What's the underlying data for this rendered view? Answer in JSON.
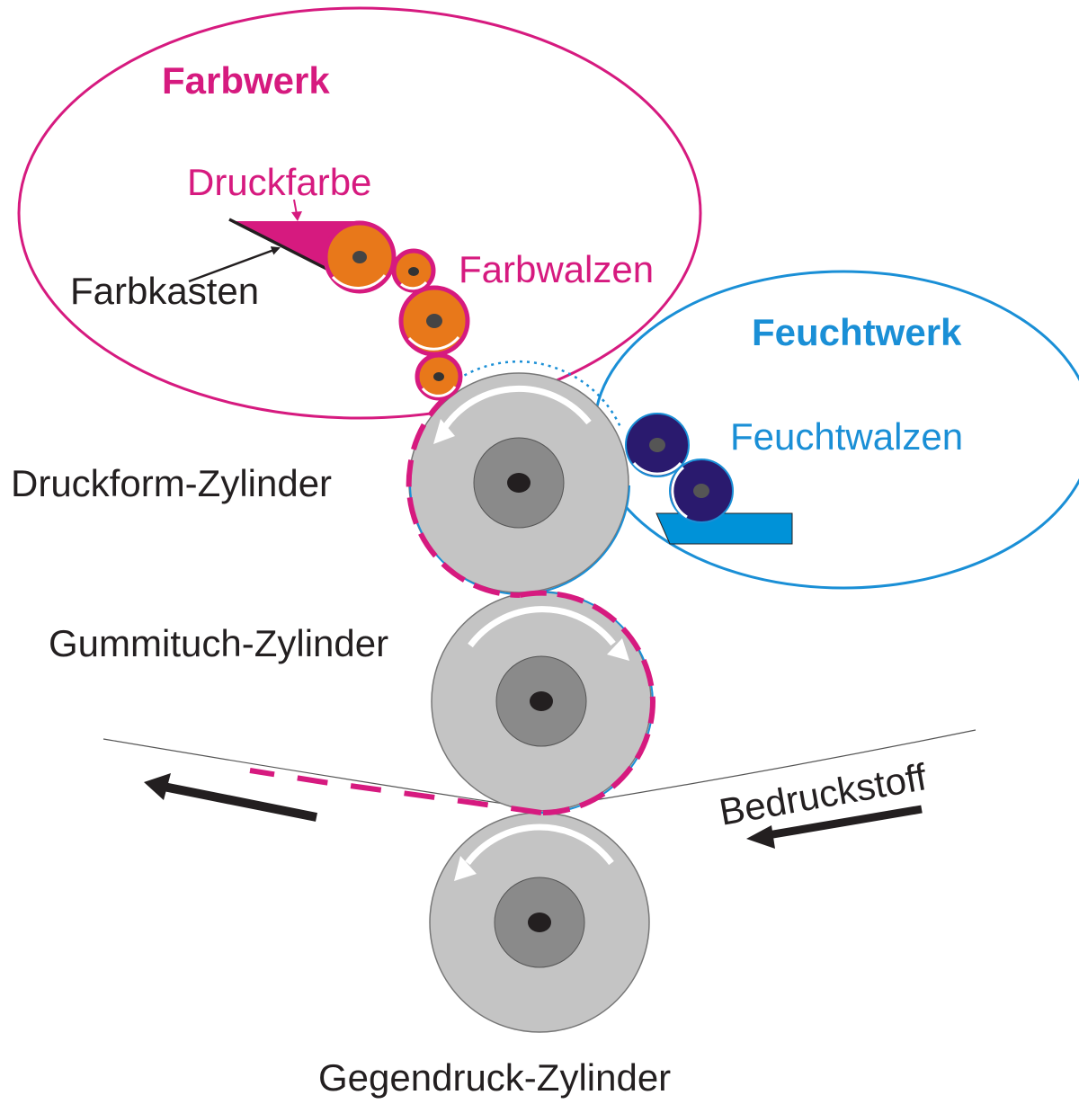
{
  "colors": {
    "magenta": "#d61a7f",
    "blue": "#1a8fd6",
    "fountain_blue": "#0092d8",
    "orange": "#e8781a",
    "navy": "#2a1a6e",
    "cylinder_gray": "#c4c4c4",
    "hub_gray": "#8a8a8a",
    "text_black": "#231f20"
  },
  "labels": {
    "farbwerk": "Farbwerk",
    "druckfarbe": "Druckfarbe",
    "farbwalzen": "Farbwalzen",
    "farbkasten": "Farbkasten",
    "feuchtwerk": "Feuchtwerk",
    "feuchtwalzen": "Feuchtwalzen",
    "druckform_zylinder": "Druckform-Zylinder",
    "gummituch_zylinder": "Gummituch-Zylinder",
    "gegendruck_zylinder": "Gegendruck-Zylinder",
    "bedruckstoff": "Bedruckstoff"
  }
}
